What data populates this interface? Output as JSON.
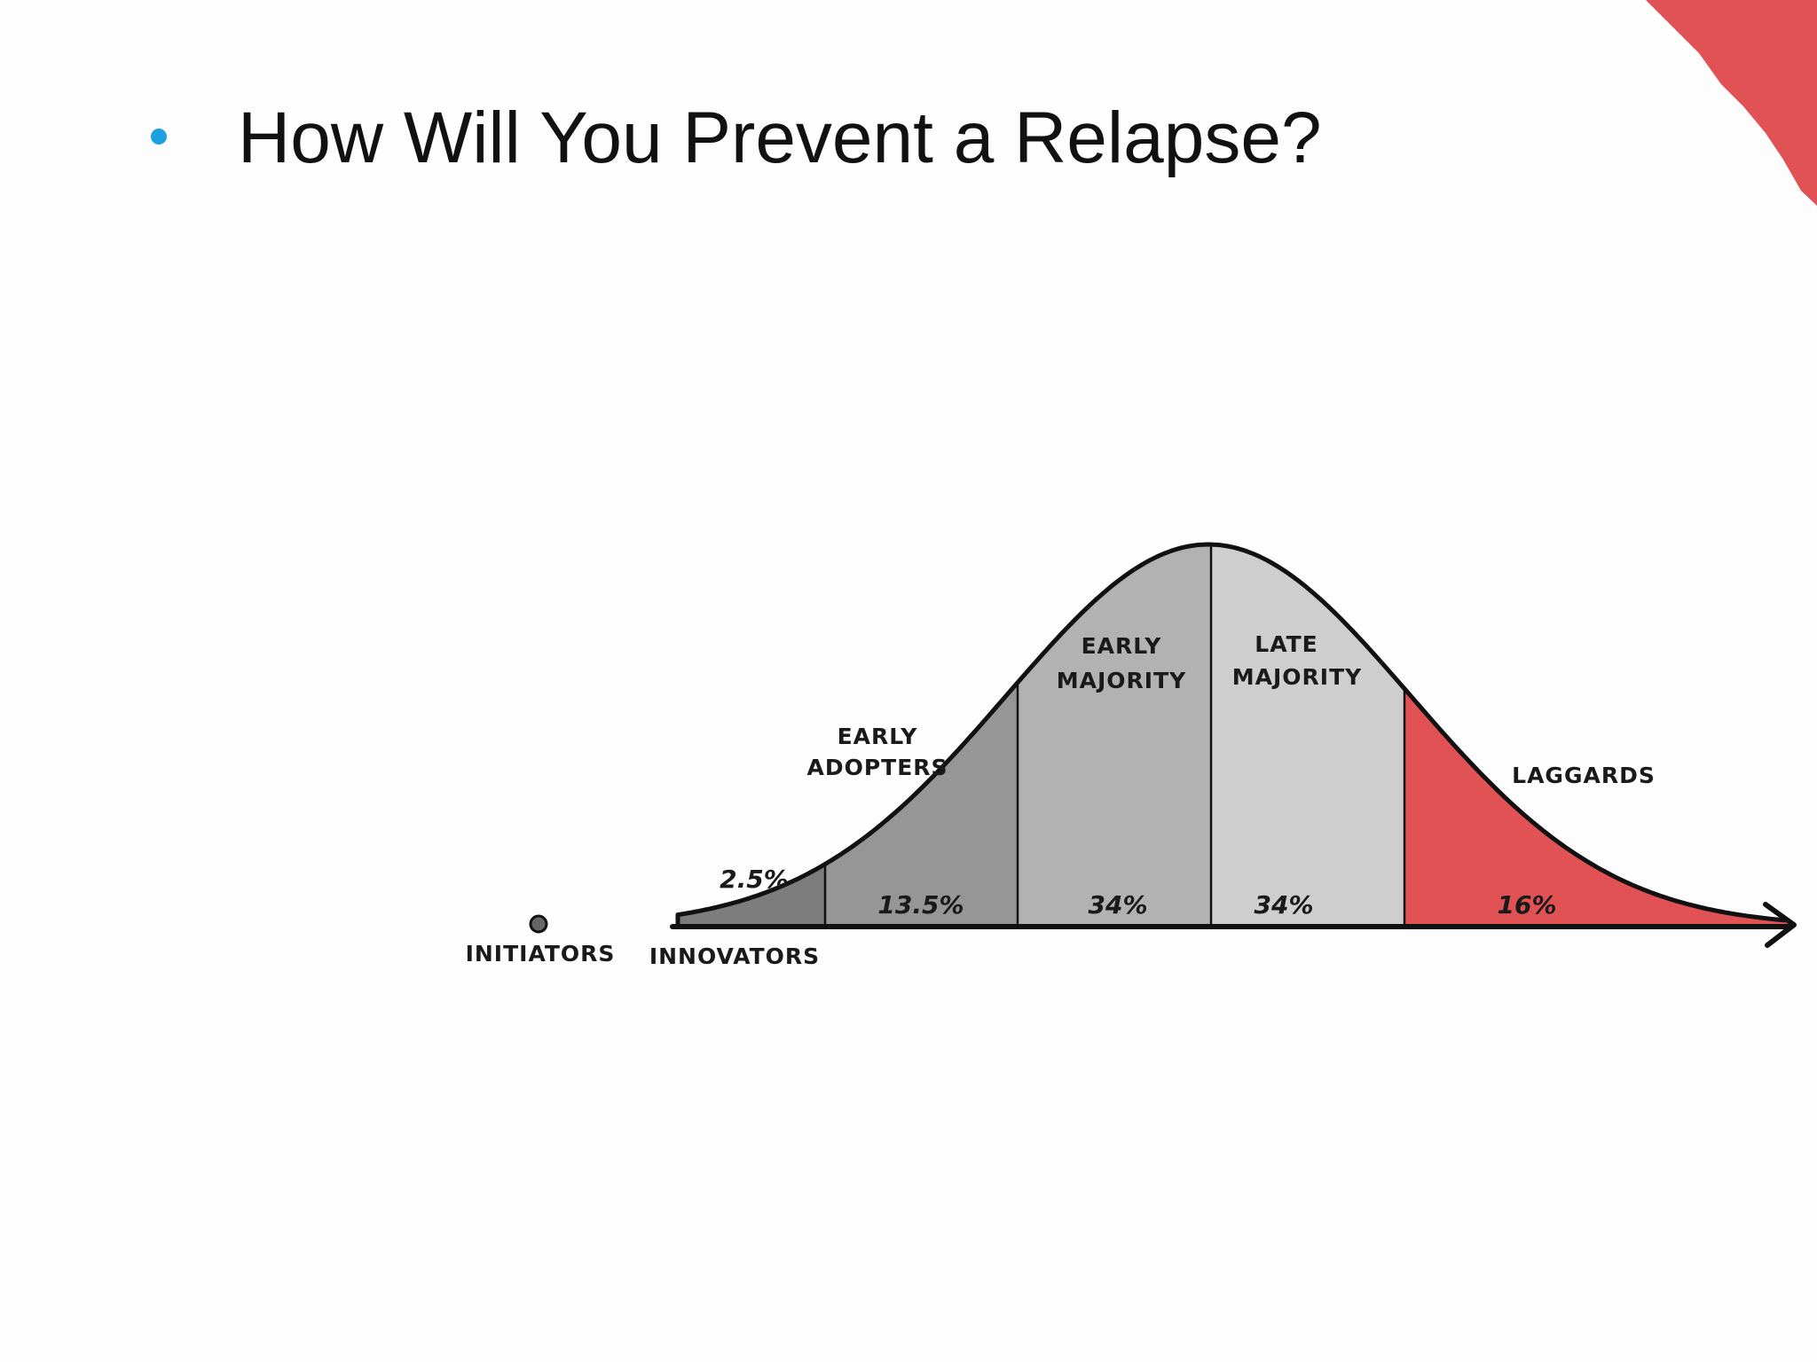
{
  "slide": {
    "title": "How Will You Prevent a Relapse?"
  },
  "diagram": {
    "initiators": "INITIATORS",
    "innovators": {
      "label": "INNOVATORS",
      "share": "2.5%"
    },
    "early_adopters": {
      "label": [
        "EARLY",
        "ADOPTERS"
      ],
      "share": "13.5%"
    },
    "early_majority": {
      "label": [
        "EARLY",
        "MAJORITY"
      ],
      "share": "34%"
    },
    "late_majority": {
      "label": [
        "LATE",
        "MAJORITY"
      ],
      "share": "34%"
    },
    "laggards": {
      "label": "LAGGARDS",
      "share": "16%"
    }
  }
}
